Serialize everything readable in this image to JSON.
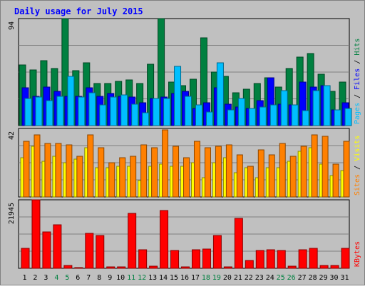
{
  "chart_data": {
    "type": "bar",
    "title": "Daily usage for July 2015",
    "categories": [
      "1",
      "2",
      "3",
      "4",
      "5",
      "6",
      "7",
      "8",
      "9",
      "10",
      "11",
      "12",
      "13",
      "14",
      "15",
      "16",
      "17",
      "18",
      "19",
      "20",
      "21",
      "22",
      "23",
      "24",
      "25",
      "26",
      "27",
      "28",
      "29",
      "30",
      "31"
    ],
    "weekend_days": [
      "4",
      "5",
      "11",
      "12",
      "18",
      "19",
      "25",
      "26"
    ],
    "panels": [
      {
        "id": "hits",
        "max_label": "94",
        "ylim": [
          0,
          94
        ],
        "right_labels": [
          "Pages",
          "Files",
          "Hits"
        ],
        "series": [
          {
            "name": "Hits",
            "color": "#008040",
            "values": [
              53,
              49,
              57,
              50,
              94,
              48,
              55,
              37,
              37,
              39,
              40,
              37,
              54,
              94,
              38,
              35,
              41,
              77,
              47,
              43,
              29,
              32,
              37,
              42,
              34,
              50,
              60,
              63,
              45,
              30,
              38
            ]
          },
          {
            "name": "Files",
            "color": "#0000ff",
            "values": [
              33,
              26,
              34,
              30,
              26,
              26,
              33,
              26,
              28,
              26,
              25,
              20,
              24,
              25,
              28,
              30,
              15,
              20,
              33,
              19,
              16,
              15,
              22,
              42,
              19,
              18,
              38,
              34,
              35,
              14,
              20
            ]
          },
          {
            "name": "Pages",
            "color": "#00bfff",
            "values": [
              24,
              25,
              22,
              26,
              43,
              25,
              29,
              18,
              25,
              27,
              19,
              11,
              24,
              24,
              52,
              26,
              18,
              12,
              55,
              14,
              24,
              15,
              16,
              18,
              31,
              18,
              13,
              31,
              35,
              14,
              15
            ]
          }
        ]
      },
      {
        "id": "visits",
        "max_label": "42",
        "ylim": [
          0,
          42
        ],
        "right_labels": [
          "Sites",
          "Visits"
        ],
        "series": [
          {
            "name": "Visits",
            "color": "#ffff00",
            "values": [
              24,
              31,
              22,
              25,
              21,
              23,
              30,
              18,
              18,
              19,
              19,
              10,
              19,
              20,
              19,
              19,
              21,
              12,
              21,
              24,
              15,
              18,
              12,
              18,
              18,
              22,
              28,
              30,
              20,
              13,
              16
            ]
          },
          {
            "name": "Sites",
            "color": "#ff8000",
            "values": [
              34,
              38,
              33,
              33,
              32,
              25,
              38,
              30,
              21,
              24,
              25,
              32,
              30,
              41,
              31,
              24,
              34,
              30,
              31,
              32,
              26,
              19,
              29,
              26,
              33,
              25,
              31,
              38,
              37,
              20,
              34
            ]
          }
        ]
      },
      {
        "id": "kbytes",
        "max_label": "21945",
        "ylim": [
          0,
          21945
        ],
        "right_labels": [
          "KBytes"
        ],
        "series": [
          {
            "name": "KBytes",
            "color": "#ff0000",
            "values": [
              6400,
              21945,
              11700,
              13940,
              810,
              110,
              11100,
              10500,
              510,
              500,
              17700,
              6000,
              730,
              18500,
              5700,
              440,
              5900,
              6100,
              10500,
              560,
              16000,
              2600,
              5700,
              6000,
              5700,
              660,
              6000,
              6400,
              940,
              900,
              6400
            ]
          }
        ]
      }
    ]
  }
}
